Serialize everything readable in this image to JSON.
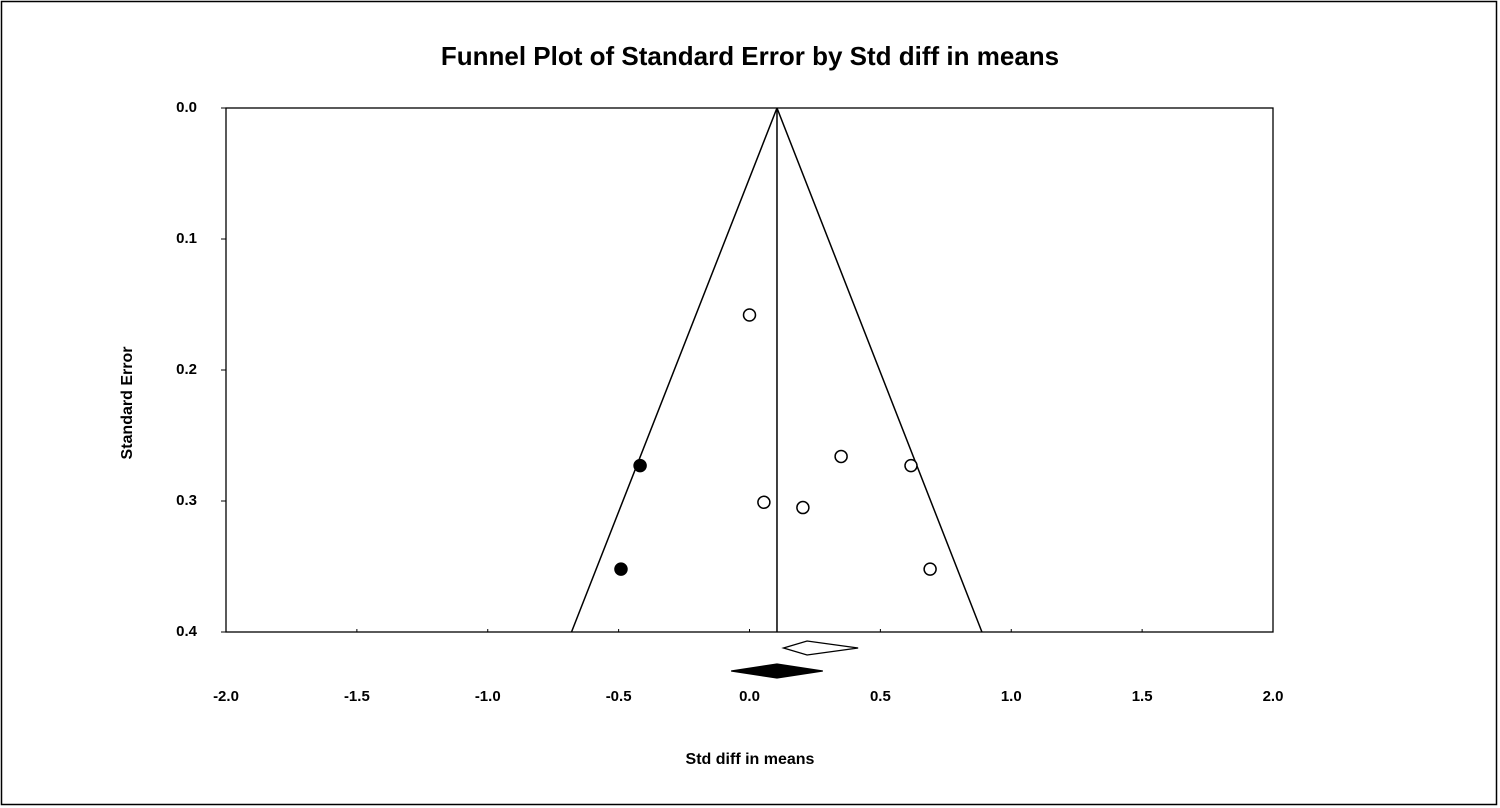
{
  "chart_data": {
    "type": "funnel",
    "title": "Funnel Plot of Standard Error by Std diff in means",
    "x_label": "Std diff in means",
    "y_label": "Standard Error",
    "xlim": [
      -2.0,
      2.0
    ],
    "xticks": [
      {
        "value": -2.0,
        "label": "-2.0"
      },
      -1.5,
      {
        "value": -1.0,
        "label": "-1.0"
      },
      -0.5,
      {
        "value": 0,
        "label": "0.0"
      },
      0.5,
      {
        "value": 1.0,
        "label": "1.0"
      },
      1.5,
      {
        "value": 2.0,
        "label": "2.0"
      }
    ],
    "ylim": [
      0,
      0.4
    ],
    "yticks": [
      {
        "value": 0,
        "label": "0.0"
      },
      0.1,
      0.2,
      0.3,
      0.4
    ],
    "y_inverted": true,
    "funnel": {
      "center": 0.105,
      "lower": -0.68,
      "upper": 0.888
    },
    "series": [
      {
        "color": "#ffffff",
        "x": [
          0.0,
          0.35,
          0.617,
          0.055,
          0.204,
          0.69
        ],
        "values": [
          0.158,
          0.266,
          0.273,
          0.301,
          0.305,
          0.352
        ]
      },
      {
        "color": "#000000",
        "x": [
          -0.418,
          -0.491
        ],
        "values": [
          0.273,
          0.352
        ]
      }
    ],
    "diamonds": [
      {
        "color": "#ffffff",
        "center": 0.22,
        "lower": 0.13,
        "upper": 0.415
      },
      {
        "color": "#000000",
        "center": 0.105,
        "lower": -0.07,
        "upper": 0.28
      }
    ]
  }
}
